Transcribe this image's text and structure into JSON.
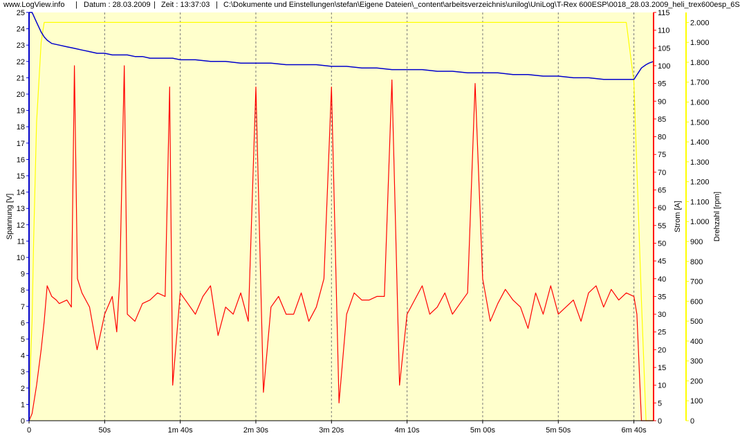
{
  "header": {
    "site": "www.LogView.info",
    "sep1": "|",
    "date": "Datum : 28.03.2009",
    "sep2": "|",
    "time": "Zeit : 13:37:03",
    "sep3": "|",
    "path": "C:\\Dokumente und Einstellungen\\stefan\\Eigene Dateien\\_content\\arbeitsverzeichnis\\unilog\\UniLog\\T-Rex 600ESP\\0018_28.03.2009_heli_trex600esp_6S"
  },
  "colors": {
    "plot_bg": "#ffffcc",
    "voltage": "#0000cc",
    "current": "#ff0000",
    "rpm": "#ffff00",
    "grid": "#777777"
  },
  "chart_data": {
    "type": "line",
    "title": "",
    "x_unit": "s",
    "xlim": [
      0,
      413
    ],
    "x_ticks": [
      {
        "value": 0,
        "label": "0"
      },
      {
        "value": 50,
        "label": "50s"
      },
      {
        "value": 100,
        "label": "1m 40s"
      },
      {
        "value": 150,
        "label": "2m 30s"
      },
      {
        "value": 200,
        "label": "3m 20s"
      },
      {
        "value": 250,
        "label": "4m 10s"
      },
      {
        "value": 300,
        "label": "5m 00s"
      },
      {
        "value": 350,
        "label": "5m 50s"
      },
      {
        "value": 400,
        "label": "6m 40s"
      }
    ],
    "axes": [
      {
        "id": "voltage",
        "label": "Spannung [V]",
        "side": "left",
        "min": 0,
        "max": 25,
        "step": 1
      },
      {
        "id": "current",
        "label": "Strom [A]",
        "side": "right",
        "min": 0,
        "max": 115,
        "step": 5
      },
      {
        "id": "rpm",
        "label": "Drehzahl [rpm]",
        "side": "right",
        "min": 0,
        "max": 2050,
        "ticks": [
          0,
          100,
          200,
          300,
          400,
          500,
          600,
          700,
          800,
          900,
          1000,
          1100,
          1200,
          1300,
          1400,
          1500,
          1600,
          1700,
          1800,
          1900,
          2000
        ],
        "tick_labels": [
          "0",
          "100",
          "200",
          "300",
          "400",
          "500",
          "600",
          "700",
          "800",
          "900",
          "1.000",
          "1.100",
          "1.200",
          "1.300",
          "1.400",
          "1.500",
          "1.600",
          "1.700",
          "1.800",
          "1.900",
          "2.000"
        ]
      }
    ],
    "series": [
      {
        "id": "voltage",
        "axis": "voltage",
        "x": [
          0,
          1,
          2,
          3,
          4,
          6,
          8,
          10,
          12,
          15,
          20,
          25,
          30,
          35,
          40,
          45,
          50,
          55,
          60,
          65,
          70,
          75,
          80,
          85,
          90,
          95,
          100,
          110,
          120,
          130,
          140,
          150,
          160,
          170,
          180,
          190,
          200,
          210,
          220,
          230,
          240,
          250,
          260,
          270,
          280,
          290,
          300,
          310,
          320,
          330,
          340,
          350,
          360,
          370,
          380,
          390,
          400,
          405,
          408,
          410,
          413
        ],
        "y": [
          25,
          25,
          25,
          24.8,
          24.6,
          24.2,
          23.8,
          23.5,
          23.3,
          23.1,
          23.0,
          22.9,
          22.8,
          22.7,
          22.6,
          22.5,
          22.5,
          22.4,
          22.4,
          22.4,
          22.3,
          22.3,
          22.2,
          22.2,
          22.2,
          22.2,
          22.1,
          22.1,
          22.0,
          22.0,
          21.9,
          21.9,
          21.9,
          21.8,
          21.8,
          21.8,
          21.7,
          21.7,
          21.6,
          21.6,
          21.5,
          21.5,
          21.5,
          21.4,
          21.4,
          21.3,
          21.3,
          21.3,
          21.2,
          21.2,
          21.1,
          21.1,
          21.0,
          21.0,
          20.9,
          20.9,
          20.9,
          21.6,
          21.8,
          21.9,
          22.0
        ]
      },
      {
        "id": "current",
        "axis": "current",
        "x": [
          0,
          2,
          5,
          8,
          10,
          12,
          15,
          18,
          20,
          25,
          28,
          30,
          32,
          35,
          40,
          45,
          50,
          55,
          58,
          60,
          63,
          65,
          70,
          75,
          80,
          85,
          90,
          93,
          95,
          100,
          105,
          110,
          115,
          120,
          125,
          130,
          135,
          140,
          145,
          150,
          155,
          160,
          165,
          170,
          175,
          180,
          185,
          190,
          195,
          200,
          205,
          210,
          215,
          220,
          225,
          230,
          235,
          240,
          245,
          250,
          255,
          260,
          265,
          270,
          275,
          280,
          285,
          290,
          295,
          300,
          305,
          310,
          315,
          320,
          325,
          330,
          335,
          340,
          345,
          350,
          355,
          360,
          365,
          370,
          375,
          380,
          385,
          390,
          395,
          400,
          402,
          405,
          413
        ],
        "y": [
          0,
          2,
          10,
          20,
          28,
          38,
          35,
          34,
          33,
          34,
          32,
          100,
          40,
          36,
          32,
          20,
          30,
          35,
          25,
          40,
          100,
          30,
          28,
          33,
          34,
          36,
          35,
          94,
          10,
          36,
          33,
          30,
          35,
          38,
          24,
          32,
          30,
          36,
          28,
          94,
          8,
          32,
          35,
          30,
          30,
          36,
          28,
          32,
          40,
          94,
          5,
          30,
          36,
          34,
          34,
          35,
          35,
          96,
          10,
          30,
          34,
          38,
          30,
          32,
          36,
          30,
          33,
          36,
          95,
          40,
          28,
          33,
          37,
          34,
          32,
          26,
          36,
          30,
          38,
          30,
          32,
          34,
          28,
          36,
          38,
          32,
          37,
          34,
          36,
          35,
          30,
          0,
          0
        ]
      },
      {
        "id": "rpm",
        "axis": "rpm",
        "x": [
          0,
          1,
          2,
          3,
          5,
          8,
          10,
          15,
          20,
          30,
          50,
          100,
          150,
          200,
          250,
          300,
          350,
          390,
          395,
          400,
          405,
          408,
          413
        ],
        "y": [
          0,
          300,
          500,
          900,
          1500,
          1900,
          2000,
          2000,
          2000,
          2000,
          2000,
          2000,
          2000,
          2000,
          2000,
          2000,
          2000,
          2000,
          2000,
          1700,
          600,
          0,
          0
        ]
      }
    ]
  }
}
